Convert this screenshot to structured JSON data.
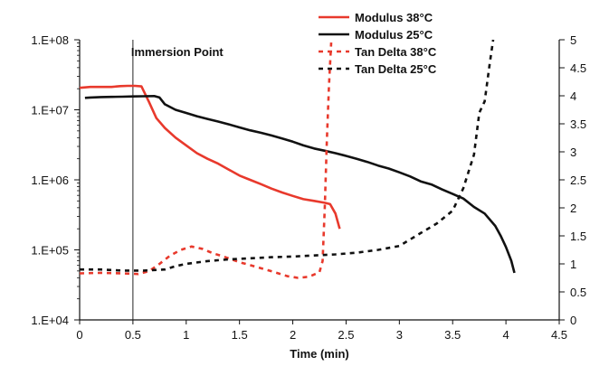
{
  "chart_data": {
    "type": "line",
    "title": "",
    "xlabel": "Time (min)",
    "ylabel": "",
    "y2label": "",
    "xlim": [
      0,
      4.5
    ],
    "ylim": [
      10000,
      100000000
    ],
    "y2lim": [
      0,
      5
    ],
    "yscale": "log",
    "grid": false,
    "legend_position": "top-right",
    "x_ticks": [
      "0",
      "0.5",
      "1",
      "1.5",
      "2",
      "2.5",
      "3",
      "3.5",
      "4",
      "4.5"
    ],
    "y_ticks": [
      "1.E+04",
      "1.E+05",
      "1.E+06",
      "1.E+07",
      "1.E+08"
    ],
    "y2_ticks": [
      "0",
      "0.5",
      "1",
      "1.5",
      "2",
      "2.5",
      "3",
      "3.5",
      "4",
      "4.5",
      "5"
    ],
    "annotation": {
      "label": "Immersion Point",
      "x": 0.5
    },
    "series": [
      {
        "name": "Modulus 38°C",
        "axis": "left",
        "color": "#e8392c",
        "style": "solid",
        "points": [
          [
            0,
            20600000
          ],
          [
            0.1,
            21200000
          ],
          [
            0.2,
            21200000
          ],
          [
            0.3,
            21200000
          ],
          [
            0.38,
            21800000
          ],
          [
            0.45,
            22000000
          ],
          [
            0.52,
            22000000
          ],
          [
            0.58,
            21600000
          ],
          [
            0.65,
            13000000
          ],
          [
            0.72,
            7600000
          ],
          [
            0.8,
            5500000
          ],
          [
            0.9,
            4000000
          ],
          [
            1.0,
            3100000
          ],
          [
            1.1,
            2400000
          ],
          [
            1.2,
            2000000
          ],
          [
            1.3,
            1700000
          ],
          [
            1.4,
            1400000
          ],
          [
            1.5,
            1150000
          ],
          [
            1.6,
            1000000
          ],
          [
            1.7,
            870000
          ],
          [
            1.8,
            750000
          ],
          [
            1.9,
            660000
          ],
          [
            2.0,
            590000
          ],
          [
            2.1,
            530000
          ],
          [
            2.2,
            500000
          ],
          [
            2.3,
            470000
          ],
          [
            2.35,
            450000
          ],
          [
            2.4,
            330000
          ],
          [
            2.44,
            200000
          ]
        ]
      },
      {
        "name": "Modulus 25°C",
        "axis": "left",
        "color": "#111111",
        "style": "solid",
        "points": [
          [
            0.05,
            14800000
          ],
          [
            0.1,
            15000000
          ],
          [
            0.2,
            15200000
          ],
          [
            0.3,
            15300000
          ],
          [
            0.4,
            15400000
          ],
          [
            0.5,
            15500000
          ],
          [
            0.6,
            15600000
          ],
          [
            0.7,
            15700000
          ],
          [
            0.75,
            15000000
          ],
          [
            0.8,
            12000000
          ],
          [
            0.9,
            10000000
          ],
          [
            1.0,
            9000000
          ],
          [
            1.1,
            8100000
          ],
          [
            1.2,
            7400000
          ],
          [
            1.3,
            6800000
          ],
          [
            1.4,
            6200000
          ],
          [
            1.5,
            5600000
          ],
          [
            1.6,
            5100000
          ],
          [
            1.7,
            4700000
          ],
          [
            1.8,
            4300000
          ],
          [
            1.9,
            3900000
          ],
          [
            2.0,
            3500000
          ],
          [
            2.1,
            3100000
          ],
          [
            2.2,
            2800000
          ],
          [
            2.3,
            2600000
          ],
          [
            2.4,
            2400000
          ],
          [
            2.5,
            2200000
          ],
          [
            2.6,
            2000000
          ],
          [
            2.7,
            1800000
          ],
          [
            2.8,
            1600000
          ],
          [
            2.9,
            1450000
          ],
          [
            3.0,
            1280000
          ],
          [
            3.1,
            1120000
          ],
          [
            3.2,
            950000
          ],
          [
            3.3,
            860000
          ],
          [
            3.4,
            730000
          ],
          [
            3.5,
            630000
          ],
          [
            3.6,
            540000
          ],
          [
            3.7,
            410000
          ],
          [
            3.8,
            330000
          ],
          [
            3.9,
            220000
          ],
          [
            3.95,
            160000
          ],
          [
            4.0,
            110000
          ],
          [
            4.05,
            70000
          ],
          [
            4.08,
            47000
          ]
        ]
      },
      {
        "name": "Tan Delta 38°C",
        "axis": "right",
        "color": "#e8392c",
        "style": "dashed",
        "points": [
          [
            0,
            0.83
          ],
          [
            0.2,
            0.84
          ],
          [
            0.4,
            0.83
          ],
          [
            0.55,
            0.82
          ],
          [
            0.65,
            0.87
          ],
          [
            0.75,
            1.0
          ],
          [
            0.85,
            1.15
          ],
          [
            0.95,
            1.25
          ],
          [
            1.05,
            1.31
          ],
          [
            1.15,
            1.27
          ],
          [
            1.25,
            1.19
          ],
          [
            1.35,
            1.13
          ],
          [
            1.5,
            1.03
          ],
          [
            1.65,
            0.95
          ],
          [
            1.8,
            0.87
          ],
          [
            1.95,
            0.78
          ],
          [
            2.05,
            0.75
          ],
          [
            2.15,
            0.77
          ],
          [
            2.25,
            0.85
          ],
          [
            2.28,
            1.05
          ],
          [
            2.3,
            2.0
          ],
          [
            2.32,
            3.2
          ],
          [
            2.34,
            4.2
          ],
          [
            2.36,
            4.95
          ]
        ]
      },
      {
        "name": "Tan Delta 25°C",
        "axis": "right",
        "color": "#111111",
        "style": "dashed",
        "points": [
          [
            0,
            0.9
          ],
          [
            0.2,
            0.9
          ],
          [
            0.4,
            0.88
          ],
          [
            0.6,
            0.88
          ],
          [
            0.8,
            0.9
          ],
          [
            0.9,
            0.96
          ],
          [
            1.0,
            1.0
          ],
          [
            1.2,
            1.05
          ],
          [
            1.4,
            1.08
          ],
          [
            1.6,
            1.1
          ],
          [
            1.8,
            1.12
          ],
          [
            2.0,
            1.13
          ],
          [
            2.2,
            1.15
          ],
          [
            2.4,
            1.17
          ],
          [
            2.6,
            1.2
          ],
          [
            2.8,
            1.25
          ],
          [
            3.0,
            1.32
          ],
          [
            3.2,
            1.55
          ],
          [
            3.35,
            1.72
          ],
          [
            3.5,
            1.95
          ],
          [
            3.6,
            2.35
          ],
          [
            3.7,
            2.95
          ],
          [
            3.75,
            3.7
          ],
          [
            3.8,
            3.9
          ],
          [
            3.85,
            4.6
          ],
          [
            3.88,
            5.0
          ]
        ]
      }
    ]
  }
}
